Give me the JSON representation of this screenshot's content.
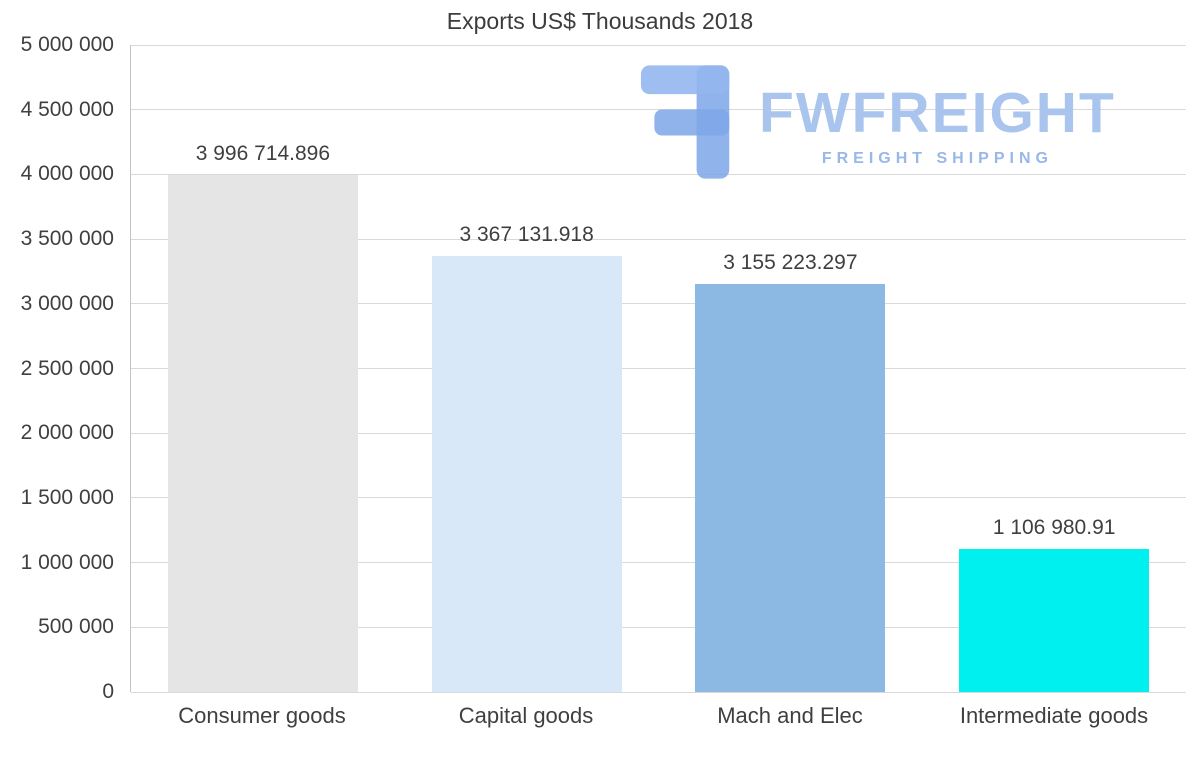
{
  "chart_data": {
    "type": "bar",
    "title": "Exports US$ Thousands 2018",
    "categories": [
      "Consumer goods",
      "Capital goods",
      "Mach and Elec",
      "Intermediate goods"
    ],
    "values": [
      3996714.896,
      3367131.918,
      3155223.297,
      1106980.91
    ],
    "value_labels": [
      "3 996 714.896",
      "3 367 131.918",
      "3 155 223.297",
      "1 106 980.91"
    ],
    "bar_colors": [
      "#e5e5e5",
      "#d9e8f9",
      "#8cb9e3",
      "#00f0f0"
    ],
    "xlabel": "",
    "ylabel": "",
    "ylim": [
      0,
      5000000
    ],
    "ytick_interval": 500000,
    "ytick_labels": [
      "5 000 000",
      "4 500 000",
      "4 000 000",
      "3 500 000",
      "3 000 000",
      "2 500 000",
      "2 000 000",
      "1 500 000",
      "1 000 000",
      "500 000",
      "0"
    ],
    "grid": true,
    "legend": "none"
  },
  "watermark": {
    "icon": "fwfreight-logo",
    "brand": "FWFREIGHT",
    "tagline": "FREIGHT SHIPPING",
    "brand_color": "#a9c5ed",
    "logo_color": "#7ea6e8"
  }
}
